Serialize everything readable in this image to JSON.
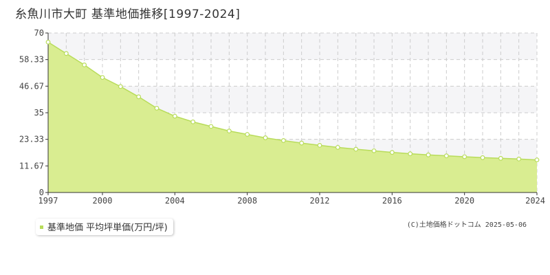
{
  "header": {
    "title": "糸魚川市大町 基準地価推移[1997-2024]"
  },
  "legend": {
    "label": "基準地価 平均坪単価(万円/坪)"
  },
  "footer": {
    "copyright": "(C)土地価格ドットコム 2025-05-06"
  },
  "colors": {
    "area_fill": "#d9ed91",
    "line": "#b8dc5a",
    "marker_fill": "#ffffff",
    "grid": "#cccccc",
    "band": "#f5f5f7"
  },
  "chart_data": {
    "type": "area",
    "title": "糸魚川市大町 基準地価推移[1997-2024]",
    "xlabel": "",
    "ylabel": "",
    "xlim": [
      1997,
      2024
    ],
    "ylim": [
      0,
      70
    ],
    "x_ticks": [
      "1997",
      "2000",
      "2004",
      "2008",
      "2012",
      "2016",
      "2020",
      "2024"
    ],
    "y_ticks": [
      "0",
      "11.67",
      "23.33",
      "35",
      "46.67",
      "58.33",
      "70"
    ],
    "grid": true,
    "legend_position": "bottom-left",
    "series": [
      {
        "name": "基準地価 平均坪単価(万円/坪)",
        "x": [
          1997,
          1998,
          1999,
          2000,
          2001,
          2002,
          2003,
          2004,
          2005,
          2006,
          2007,
          2008,
          2009,
          2010,
          2011,
          2012,
          2013,
          2014,
          2015,
          2016,
          2017,
          2018,
          2019,
          2020,
          2021,
          2022,
          2023,
          2024
        ],
        "values": [
          66.0,
          61.0,
          56.0,
          50.5,
          46.5,
          42.0,
          37.0,
          33.5,
          31.0,
          29.0,
          27.0,
          25.5,
          24.0,
          22.8,
          21.7,
          20.7,
          19.8,
          19.0,
          18.3,
          17.6,
          17.0,
          16.5,
          16.1,
          15.7,
          15.3,
          15.0,
          14.7,
          14.3
        ]
      }
    ]
  }
}
